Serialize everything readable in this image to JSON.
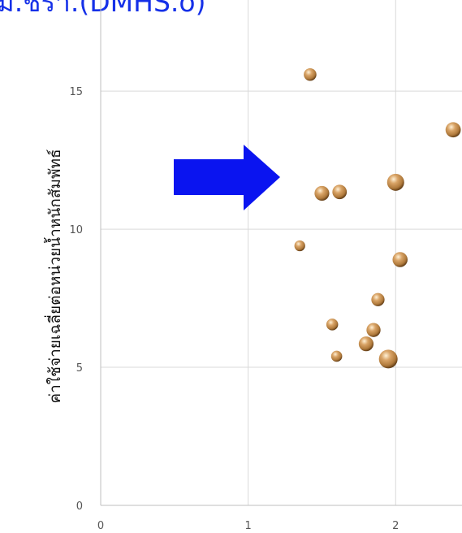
{
  "chart_data": {
    "type": "bubble",
    "title": "",
    "clipped_title_fragment": "ม.ชรา.(DMHS.o)",
    "xlabel": "",
    "ylabel": "ค่าใช้จ่ายเฉลี่ยต่อหน่วยน้ำหนักสัมพัทธ์",
    "xlim": [
      0,
      2.45
    ],
    "ylim": [
      0,
      18.3
    ],
    "x_ticks": [
      0,
      1,
      2
    ],
    "y_ticks": [
      0,
      5,
      10,
      15
    ],
    "grid": true,
    "legend": "none",
    "bubble_color": "#b07a3c",
    "points": [
      {
        "x": 1.42,
        "y": 15.6,
        "size": 0.55
      },
      {
        "x": 2.39,
        "y": 13.6,
        "size": 0.8
      },
      {
        "x": 2.0,
        "y": 11.7,
        "size": 1.0
      },
      {
        "x": 1.5,
        "y": 11.3,
        "size": 0.75
      },
      {
        "x": 1.62,
        "y": 11.35,
        "size": 0.72
      },
      {
        "x": 1.35,
        "y": 9.4,
        "size": 0.4
      },
      {
        "x": 2.03,
        "y": 8.9,
        "size": 0.78
      },
      {
        "x": 1.88,
        "y": 7.45,
        "size": 0.6
      },
      {
        "x": 1.57,
        "y": 6.55,
        "size": 0.48
      },
      {
        "x": 1.85,
        "y": 6.35,
        "size": 0.68
      },
      {
        "x": 1.8,
        "y": 5.85,
        "size": 0.75
      },
      {
        "x": 1.95,
        "y": 5.3,
        "size": 1.2
      },
      {
        "x": 1.6,
        "y": 5.4,
        "size": 0.42
      }
    ]
  },
  "annotation": {
    "arrow_color": "#0a14f0",
    "arrow_direction": "right"
  }
}
